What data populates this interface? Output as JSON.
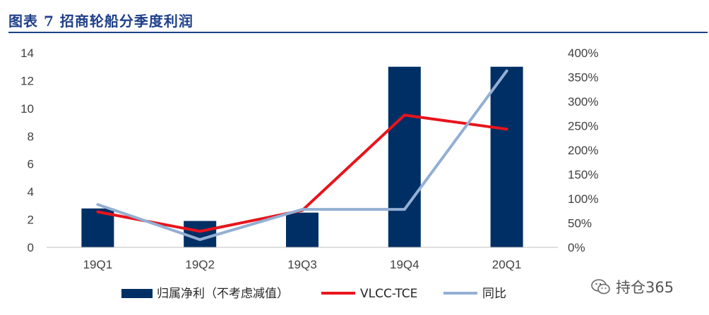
{
  "header": {
    "title": "图表 7   招商轮船分季度利润"
  },
  "chart_data": {
    "type": "bar",
    "categories": [
      "19Q1",
      "19Q2",
      "19Q3",
      "19Q4",
      "20Q1"
    ],
    "series": [
      {
        "name": "归属净利（不考虑减值）",
        "type": "bar",
        "axis": "left",
        "color": "#002F65",
        "values": [
          2.8,
          1.9,
          2.5,
          13.0,
          13.0
        ]
      },
      {
        "name": "VLCC-TCE",
        "type": "line",
        "axis": "right",
        "color": "#E8141B",
        "values": [
          0.73,
          0.33,
          0.76,
          2.72,
          2.43
        ]
      },
      {
        "name": "同比",
        "type": "line",
        "axis": "right",
        "color": "#93AFD3",
        "values": [
          0.88,
          0.16,
          0.78,
          0.78,
          3.63
        ]
      }
    ],
    "ylim_left": [
      0,
      14
    ],
    "yticks_left": [
      "0",
      "2",
      "4",
      "6",
      "8",
      "10",
      "12",
      "14"
    ],
    "ylim_right": [
      0,
      4
    ],
    "yticks_right": [
      "0%",
      "50%",
      "100%",
      "150%",
      "200%",
      "250%",
      "300%",
      "350%",
      "400%"
    ],
    "grid": false,
    "legend_position": "bottom"
  },
  "watermark": {
    "text": "持仓365",
    "icon": "wechat-icon"
  }
}
